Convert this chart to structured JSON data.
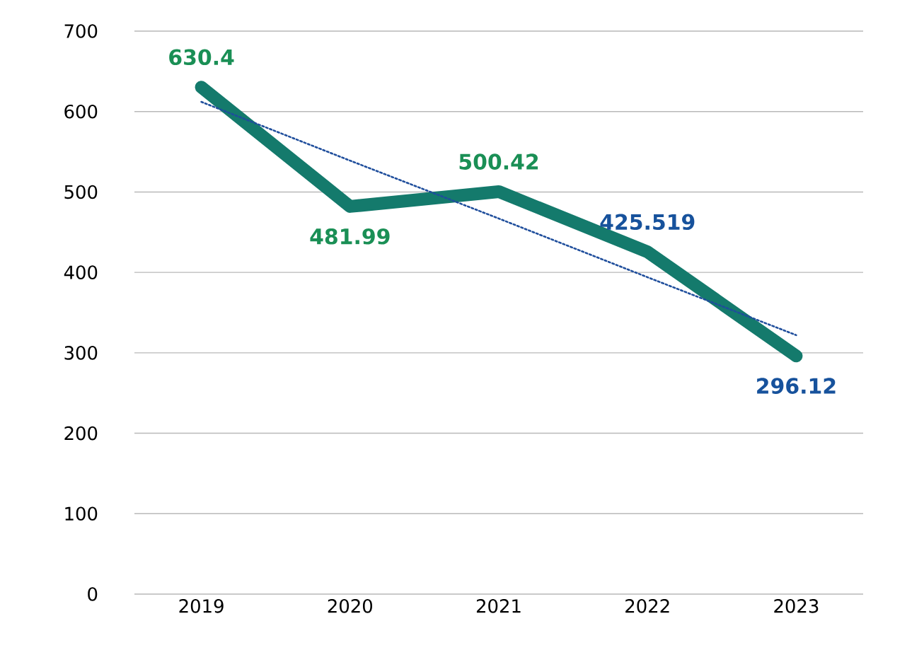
{
  "chart_data": {
    "type": "line",
    "categories": [
      "2019",
      "2020",
      "2021",
      "2022",
      "2023"
    ],
    "ylim": [
      0,
      700
    ],
    "yticks": [
      0,
      100,
      200,
      300,
      400,
      500,
      600,
      700
    ],
    "grid": "y",
    "series": [
      {
        "color": "#147a6c",
        "colors": [
          "#1a8f55",
          "#1a8f55",
          "#1a8f55",
          "#17529c",
          "#17529c"
        ],
        "values": [
          630.4,
          481.99,
          500.42,
          425.519,
          296.12
        ],
        "value_labels": [
          "630.4",
          "481.99",
          "500.42",
          "425.519",
          "296.12"
        ]
      },
      {
        "type": "line",
        "values": [
          612,
          539,
          467,
          394,
          322
        ],
        "color": "#1f4e9c",
        "line_style": "dotted"
      }
    ]
  }
}
